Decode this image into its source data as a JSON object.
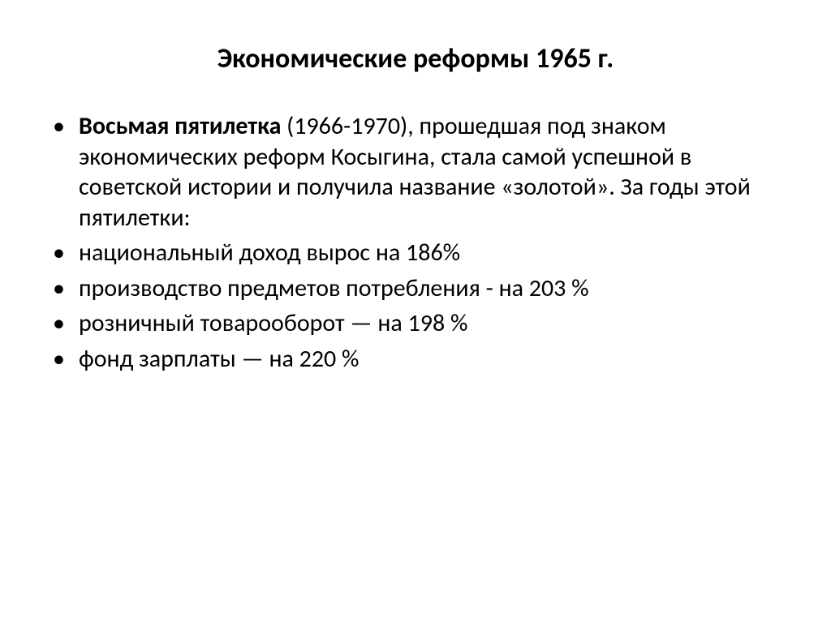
{
  "slide": {
    "title": "Экономические реформы 1965 г.",
    "title_fontsize": 34,
    "body_fontsize": 30,
    "text_color": "#000000",
    "background_color": "#ffffff",
    "bullets": [
      {
        "bold_prefix": "Восьмая пятилетка ",
        "rest": "(1966-1970), прошедшая под знаком экономических реформ Косыгина, стала самой успешной в советской истории и получила название «золотой». За годы этой пятилетки:"
      },
      {
        "bold_prefix": "",
        "rest": "национальный доход вырос на 186%"
      },
      {
        "bold_prefix": "",
        "rest": "производство предметов потребления - на 203 %"
      },
      {
        "bold_prefix": "",
        "rest": "розничный товарооборот — на 198 %"
      },
      {
        "bold_prefix": "",
        "rest": "фонд зарплаты — на 220 %"
      }
    ]
  }
}
